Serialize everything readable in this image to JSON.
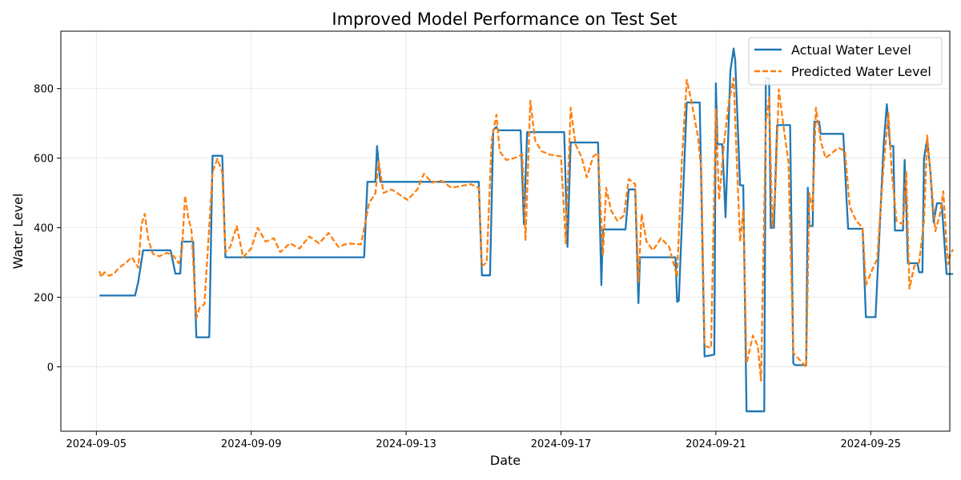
{
  "chart_data": {
    "type": "line",
    "title": "Improved Model Performance on Test Set",
    "xlabel": "Date",
    "ylabel": "Water Level",
    "xlim": [
      "2024-09-04 02:00",
      "2024-09-27 01:00"
    ],
    "ylim": [
      -185,
      965
    ],
    "x_ticks": [
      "2024-09-05",
      "2024-09-09",
      "2024-09-13",
      "2024-09-17",
      "2024-09-21",
      "2024-09-25"
    ],
    "y_ticks": [
      0,
      200,
      400,
      600,
      800
    ],
    "grid": true,
    "legend_position": "top-right",
    "series": [
      {
        "name": "Actual Water Level",
        "color": "#1f77b4",
        "style": "solid",
        "points": [
          [
            "2024-09-05 02:00",
            205
          ],
          [
            "2024-09-06 00:00",
            205
          ],
          [
            "2024-09-06 02:00",
            245
          ],
          [
            "2024-09-06 05:00",
            335
          ],
          [
            "2024-09-06 22:00",
            335
          ],
          [
            "2024-09-07 01:00",
            268
          ],
          [
            "2024-09-07 04:00",
            268
          ],
          [
            "2024-09-07 05:00",
            360
          ],
          [
            "2024-09-07 12:00",
            360
          ],
          [
            "2024-09-07 14:00",
            85
          ],
          [
            "2024-09-07 22:00",
            85
          ],
          [
            "2024-09-08 00:00",
            607
          ],
          [
            "2024-09-08 06:00",
            607
          ],
          [
            "2024-09-08 08:00",
            315
          ],
          [
            "2024-09-11 22:00",
            315
          ],
          [
            "2024-09-12 00:00",
            532
          ],
          [
            "2024-09-12 05:00",
            532
          ],
          [
            "2024-09-12 06:00",
            635
          ],
          [
            "2024-09-12 08:00",
            532
          ],
          [
            "2024-09-14 21:00",
            532
          ],
          [
            "2024-09-14 23:00",
            263
          ],
          [
            "2024-09-15 04:00",
            263
          ],
          [
            "2024-09-15 06:00",
            680
          ],
          [
            "2024-09-15 08:00",
            690
          ],
          [
            "2024-09-15 09:00",
            680
          ],
          [
            "2024-09-15 23:00",
            680
          ],
          [
            "2024-09-16 01:00",
            410
          ],
          [
            "2024-09-16 03:00",
            675
          ],
          [
            "2024-09-17 02:00",
            675
          ],
          [
            "2024-09-17 04:00",
            345
          ],
          [
            "2024-09-17 06:00",
            645
          ],
          [
            "2024-09-17 23:00",
            645
          ],
          [
            "2024-09-18 01:00",
            235
          ],
          [
            "2024-09-18 02:00",
            395
          ],
          [
            "2024-09-18 16:00",
            395
          ],
          [
            "2024-09-18 18:00",
            510
          ],
          [
            "2024-09-18 22:00",
            510
          ],
          [
            "2024-09-19 00:00",
            183
          ],
          [
            "2024-09-19 01:00",
            315
          ],
          [
            "2024-09-19 23:00",
            315
          ],
          [
            "2024-09-20 00:00",
            187
          ],
          [
            "2024-09-20 01:00",
            190
          ],
          [
            "2024-09-20 06:00",
            760
          ],
          [
            "2024-09-20 14:00",
            760
          ],
          [
            "2024-09-20 17:00",
            30
          ],
          [
            "2024-09-20 23:00",
            35
          ],
          [
            "2024-09-21 00:00",
            815
          ],
          [
            "2024-09-21 01:00",
            640
          ],
          [
            "2024-09-21 04:00",
            640
          ],
          [
            "2024-09-21 06:00",
            430
          ],
          [
            "2024-09-21 09:00",
            850
          ],
          [
            "2024-09-21 11:00",
            915
          ],
          [
            "2024-09-21 12:00",
            880
          ],
          [
            "2024-09-21 15:00",
            522
          ],
          [
            "2024-09-21 17:00",
            522
          ],
          [
            "2024-09-21 19:00",
            -128
          ],
          [
            "2024-09-22 06:00",
            -128
          ],
          [
            "2024-09-22 07:00",
            830
          ],
          [
            "2024-09-22 09:00",
            830
          ],
          [
            "2024-09-22 10:00",
            400
          ],
          [
            "2024-09-22 12:00",
            400
          ],
          [
            "2024-09-22 14:00",
            695
          ],
          [
            "2024-09-22 22:00",
            695
          ],
          [
            "2024-09-23 00:00",
            10
          ],
          [
            "2024-09-23 01:00",
            5
          ],
          [
            "2024-09-23 08:00",
            5
          ],
          [
            "2024-09-23 09:00",
            515
          ],
          [
            "2024-09-23 10:00",
            405
          ],
          [
            "2024-09-23 12:00",
            405
          ],
          [
            "2024-09-23 13:00",
            705
          ],
          [
            "2024-09-23 16:00",
            705
          ],
          [
            "2024-09-23 17:00",
            670
          ],
          [
            "2024-09-24 07:00",
            670
          ],
          [
            "2024-09-24 09:00",
            480
          ],
          [
            "2024-09-24 10:00",
            397
          ],
          [
            "2024-09-24 19:00",
            397
          ],
          [
            "2024-09-24 21:00",
            143
          ],
          [
            "2024-09-25 03:00",
            143
          ],
          [
            "2024-09-25 08:00",
            640
          ],
          [
            "2024-09-25 10:00",
            755
          ],
          [
            "2024-09-25 12:00",
            635
          ],
          [
            "2024-09-25 14:00",
            635
          ],
          [
            "2024-09-25 15:00",
            392
          ],
          [
            "2024-09-25 20:00",
            392
          ],
          [
            "2024-09-25 21:00",
            595
          ],
          [
            "2024-09-25 22:00",
            470
          ],
          [
            "2024-09-25 23:00",
            298
          ],
          [
            "2024-09-26 05:00",
            298
          ],
          [
            "2024-09-26 06:00",
            272
          ],
          [
            "2024-09-26 08:00",
            272
          ],
          [
            "2024-09-26 09:00",
            600
          ],
          [
            "2024-09-26 11:00",
            655
          ],
          [
            "2024-09-26 13:00",
            560
          ],
          [
            "2024-09-26 15:00",
            415
          ],
          [
            "2024-09-26 17:00",
            470
          ],
          [
            "2024-09-26 20:00",
            470
          ],
          [
            "2024-09-26 23:00",
            267
          ],
          [
            "2024-09-27 03:00",
            267
          ]
        ]
      },
      {
        "name": "Predicted Water Level",
        "color": "#ff7f0e",
        "style": "dashed",
        "points": [
          [
            "2024-09-05 02:00",
            275
          ],
          [
            "2024-09-05 03:00",
            258
          ],
          [
            "2024-09-05 05:00",
            272
          ],
          [
            "2024-09-05 08:00",
            262
          ],
          [
            "2024-09-05 11:00",
            268
          ],
          [
            "2024-09-05 14:00",
            285
          ],
          [
            "2024-09-05 18:00",
            298
          ],
          [
            "2024-09-05 22:00",
            315
          ],
          [
            "2024-09-06 02:00",
            285
          ],
          [
            "2024-09-06 04:00",
            410
          ],
          [
            "2024-09-06 06:00",
            440
          ],
          [
            "2024-09-06 08:00",
            370
          ],
          [
            "2024-09-06 11:00",
            325
          ],
          [
            "2024-09-06 15:00",
            318
          ],
          [
            "2024-09-06 20:00",
            328
          ],
          [
            "2024-09-07 00:00",
            318
          ],
          [
            "2024-09-07 03:00",
            298
          ],
          [
            "2024-09-07 05:00",
            330
          ],
          [
            "2024-09-07 07:00",
            492
          ],
          [
            "2024-09-07 09:00",
            430
          ],
          [
            "2024-09-07 11:00",
            390
          ],
          [
            "2024-09-07 14:00",
            140
          ],
          [
            "2024-09-07 16:00",
            170
          ],
          [
            "2024-09-07 19:00",
            180
          ],
          [
            "2024-09-08 00:00",
            560
          ],
          [
            "2024-09-08 03:00",
            598
          ],
          [
            "2024-09-08 06:00",
            560
          ],
          [
            "2024-09-08 08:00",
            330
          ],
          [
            "2024-09-08 11:00",
            345
          ],
          [
            "2024-09-08 15:00",
            405
          ],
          [
            "2024-09-08 19:00",
            315
          ],
          [
            "2024-09-09 00:00",
            340
          ],
          [
            "2024-09-09 04:00",
            400
          ],
          [
            "2024-09-09 09:00",
            360
          ],
          [
            "2024-09-09 14:00",
            370
          ],
          [
            "2024-09-09 18:00",
            330
          ],
          [
            "2024-09-10 00:00",
            355
          ],
          [
            "2024-09-10 06:00",
            340
          ],
          [
            "2024-09-10 12:00",
            375
          ],
          [
            "2024-09-10 18:00",
            355
          ],
          [
            "2024-09-11 00:00",
            385
          ],
          [
            "2024-09-11 06:00",
            345
          ],
          [
            "2024-09-11 12:00",
            355
          ],
          [
            "2024-09-11 20:00",
            352
          ],
          [
            "2024-09-12 01:00",
            470
          ],
          [
            "2024-09-12 05:00",
            500
          ],
          [
            "2024-09-12 07:00",
            590
          ],
          [
            "2024-09-12 10:00",
            500
          ],
          [
            "2024-09-12 15:00",
            510
          ],
          [
            "2024-09-12 20:00",
            495
          ],
          [
            "2024-09-13 01:00",
            480
          ],
          [
            "2024-09-13 07:00",
            510
          ],
          [
            "2024-09-13 11:00",
            555
          ],
          [
            "2024-09-13 16:00",
            530
          ],
          [
            "2024-09-13 22:00",
            535
          ],
          [
            "2024-09-14 04:00",
            515
          ],
          [
            "2024-09-14 10:00",
            520
          ],
          [
            "2024-09-14 16:00",
            525
          ],
          [
            "2024-09-14 21:00",
            515
          ],
          [
            "2024-09-14 23:00",
            290
          ],
          [
            "2024-09-15 02:00",
            300
          ],
          [
            "2024-09-15 05:00",
            650
          ],
          [
            "2024-09-15 08:00",
            725
          ],
          [
            "2024-09-15 10:00",
            620
          ],
          [
            "2024-09-15 14:00",
            595
          ],
          [
            "2024-09-15 19:00",
            600
          ],
          [
            "2024-09-16 00:00",
            610
          ],
          [
            "2024-09-16 02:00",
            365
          ],
          [
            "2024-09-16 05:00",
            765
          ],
          [
            "2024-09-16 08:00",
            650
          ],
          [
            "2024-09-16 12:00",
            620
          ],
          [
            "2024-09-16 17:00",
            610
          ],
          [
            "2024-09-17 00:00",
            605
          ],
          [
            "2024-09-17 03:00",
            355
          ],
          [
            "2024-09-17 06:00",
            745
          ],
          [
            "2024-09-17 09:00",
            640
          ],
          [
            "2024-09-17 13:00",
            600
          ],
          [
            "2024-09-17 16:00",
            545
          ],
          [
            "2024-09-17 20:00",
            605
          ],
          [
            "2024-09-17 23:00",
            615
          ],
          [
            "2024-09-18 02:00",
            320
          ],
          [
            "2024-09-18 04:00",
            515
          ],
          [
            "2024-09-18 07:00",
            450
          ],
          [
            "2024-09-18 11:00",
            420
          ],
          [
            "2024-09-18 15:00",
            435
          ],
          [
            "2024-09-18 18:00",
            540
          ],
          [
            "2024-09-18 22:00",
            525
          ],
          [
            "2024-09-19 00:00",
            245
          ],
          [
            "2024-09-19 02:00",
            440
          ],
          [
            "2024-09-19 05:00",
            360
          ],
          [
            "2024-09-19 09:00",
            335
          ],
          [
            "2024-09-19 14:00",
            370
          ],
          [
            "2024-09-19 19:00",
            345
          ],
          [
            "2024-09-20 00:00",
            260
          ],
          [
            "2024-09-20 03:00",
            600
          ],
          [
            "2024-09-20 06:00",
            825
          ],
          [
            "2024-09-20 09:00",
            760
          ],
          [
            "2024-09-20 13:00",
            660
          ],
          [
            "2024-09-20 15:00",
            560
          ],
          [
            "2024-09-20 17:00",
            60
          ],
          [
            "2024-09-20 21:00",
            55
          ],
          [
            "2024-09-21 00:00",
            740
          ],
          [
            "2024-09-21 02:00",
            480
          ],
          [
            "2024-09-21 05:00",
            640
          ],
          [
            "2024-09-21 08:00",
            760
          ],
          [
            "2024-09-21 11:00",
            830
          ],
          [
            "2024-09-21 13:00",
            590
          ],
          [
            "2024-09-21 15:00",
            360
          ],
          [
            "2024-09-21 17:00",
            450
          ],
          [
            "2024-09-21 19:00",
            10
          ],
          [
            "2024-09-21 23:00",
            90
          ],
          [
            "2024-09-22 02:00",
            60
          ],
          [
            "2024-09-22 04:00",
            -40
          ],
          [
            "2024-09-22 07:00",
            700
          ],
          [
            "2024-09-22 09:00",
            775
          ],
          [
            "2024-09-22 11:00",
            400
          ],
          [
            "2024-09-22 13:00",
            520
          ],
          [
            "2024-09-22 15:00",
            798
          ],
          [
            "2024-09-22 18:00",
            690
          ],
          [
            "2024-09-22 21:00",
            590
          ],
          [
            "2024-09-23 00:00",
            40
          ],
          [
            "2024-09-23 04:00",
            20
          ],
          [
            "2024-09-23 08:00",
            0
          ],
          [
            "2024-09-23 10:00",
            500
          ],
          [
            "2024-09-23 12:00",
            450
          ],
          [
            "2024-09-23 14:00",
            745
          ],
          [
            "2024-09-23 17:00",
            650
          ],
          [
            "2024-09-23 20:00",
            600
          ],
          [
            "2024-09-24 00:00",
            615
          ],
          [
            "2024-09-24 04:00",
            630
          ],
          [
            "2024-09-24 08:00",
            620
          ],
          [
            "2024-09-24 11:00",
            460
          ],
          [
            "2024-09-24 15:00",
            420
          ],
          [
            "2024-09-24 19:00",
            400
          ],
          [
            "2024-09-24 21:00",
            235
          ],
          [
            "2024-09-25 01:00",
            280
          ],
          [
            "2024-09-25 04:00",
            310
          ],
          [
            "2024-09-25 08:00",
            580
          ],
          [
            "2024-09-25 11:00",
            730
          ],
          [
            "2024-09-25 13:00",
            560
          ],
          [
            "2024-09-25 16:00",
            420
          ],
          [
            "2024-09-25 20:00",
            410
          ],
          [
            "2024-09-25 22:00",
            560
          ],
          [
            "2024-09-26 00:00",
            225
          ],
          [
            "2024-09-26 03:00",
            290
          ],
          [
            "2024-09-26 06:00",
            300
          ],
          [
            "2024-09-26 09:00",
            420
          ],
          [
            "2024-09-26 11:00",
            665
          ],
          [
            "2024-09-26 13:00",
            560
          ],
          [
            "2024-09-26 16:00",
            390
          ],
          [
            "2024-09-26 19:00",
            440
          ],
          [
            "2024-09-26 21:00",
            505
          ],
          [
            "2024-09-26 23:00",
            350
          ],
          [
            "2024-09-27 00:00",
            295
          ],
          [
            "2024-09-27 01:00",
            320
          ],
          [
            "2024-09-27 03:00",
            338
          ]
        ]
      }
    ]
  }
}
